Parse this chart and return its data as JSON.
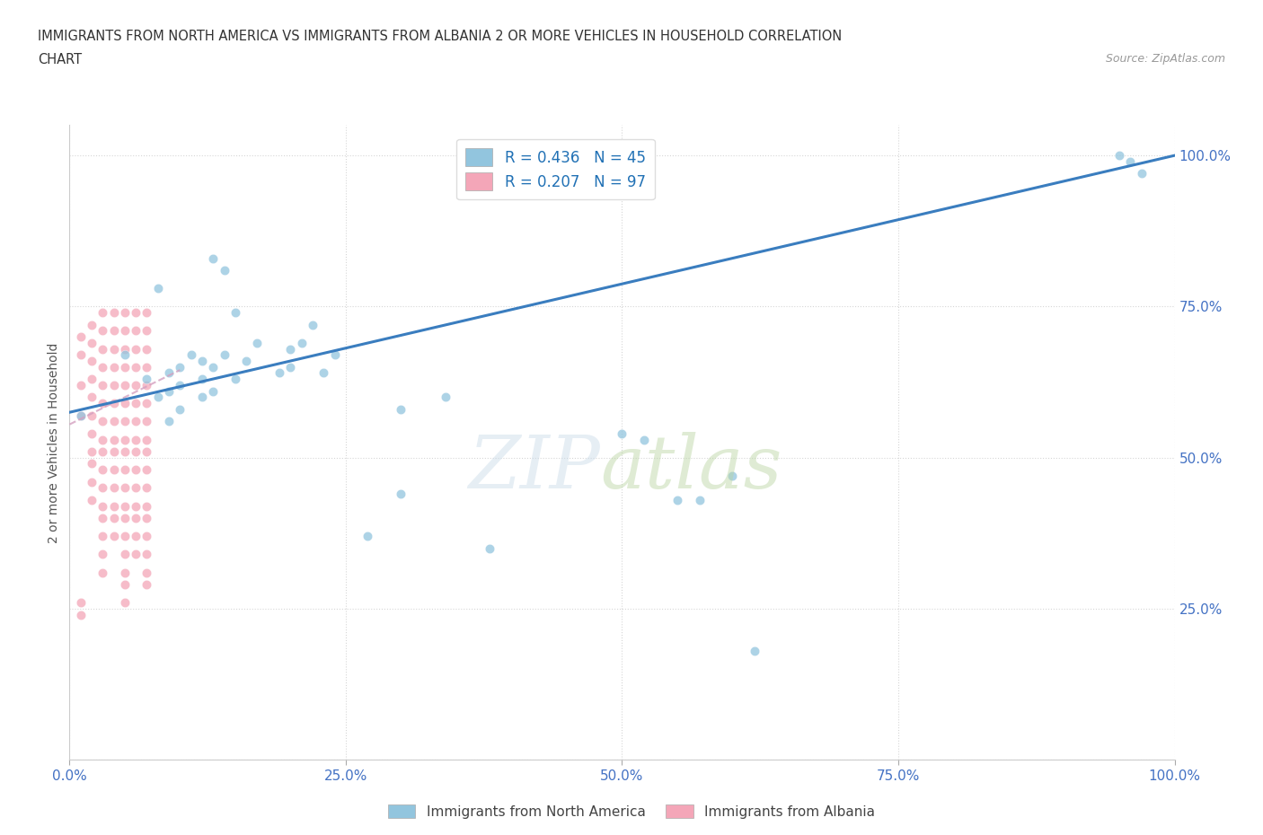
{
  "title_line1": "IMMIGRANTS FROM NORTH AMERICA VS IMMIGRANTS FROM ALBANIA 2 OR MORE VEHICLES IN HOUSEHOLD CORRELATION",
  "title_line2": "CHART",
  "source": "Source: ZipAtlas.com",
  "ylabel": "2 or more Vehicles in Household",
  "xticklabels": [
    "0.0%",
    "25.0%",
    "50.0%",
    "75.0%",
    "100.0%"
  ],
  "xticks": [
    0.0,
    0.25,
    0.5,
    0.75,
    1.0
  ],
  "yticklabels_right": [
    "25.0%",
    "50.0%",
    "75.0%",
    "100.0%"
  ],
  "yticks_right": [
    0.25,
    0.5,
    0.75,
    1.0
  ],
  "xlim": [
    0.0,
    1.0
  ],
  "ylim": [
    0.0,
    1.05
  ],
  "legend_blue_label": "R = 0.436   N = 45",
  "legend_pink_label": "R = 0.207   N = 97",
  "blue_color": "#92c5de",
  "pink_color": "#f4a6b8",
  "trendline_blue_color": "#3a7dbf",
  "pink_trendline_color": "#d4a0c0",
  "blue_scatter_x": [
    0.01,
    0.13,
    0.05,
    0.07,
    0.08,
    0.08,
    0.09,
    0.09,
    0.09,
    0.1,
    0.1,
    0.1,
    0.11,
    0.12,
    0.12,
    0.12,
    0.13,
    0.13,
    0.14,
    0.14,
    0.15,
    0.15,
    0.16,
    0.17,
    0.19,
    0.2,
    0.2,
    0.21,
    0.22,
    0.23,
    0.24,
    0.27,
    0.3,
    0.3,
    0.34,
    0.38,
    0.5,
    0.52,
    0.55,
    0.57,
    0.6,
    0.62,
    0.95,
    0.96,
    0.97
  ],
  "blue_scatter_y": [
    0.57,
    0.83,
    0.67,
    0.63,
    0.6,
    0.78,
    0.61,
    0.64,
    0.56,
    0.65,
    0.62,
    0.58,
    0.67,
    0.66,
    0.63,
    0.6,
    0.65,
    0.61,
    0.67,
    0.81,
    0.63,
    0.74,
    0.66,
    0.69,
    0.64,
    0.65,
    0.68,
    0.69,
    0.72,
    0.64,
    0.67,
    0.37,
    0.58,
    0.44,
    0.6,
    0.35,
    0.54,
    0.53,
    0.43,
    0.43,
    0.47,
    0.18,
    1.0,
    0.99,
    0.97
  ],
  "pink_scatter_x": [
    0.01,
    0.01,
    0.01,
    0.01,
    0.02,
    0.02,
    0.02,
    0.02,
    0.02,
    0.02,
    0.02,
    0.02,
    0.02,
    0.02,
    0.02,
    0.03,
    0.03,
    0.03,
    0.03,
    0.03,
    0.03,
    0.03,
    0.03,
    0.03,
    0.03,
    0.03,
    0.03,
    0.03,
    0.03,
    0.03,
    0.03,
    0.04,
    0.04,
    0.04,
    0.04,
    0.04,
    0.04,
    0.04,
    0.04,
    0.04,
    0.04,
    0.04,
    0.04,
    0.04,
    0.04,
    0.05,
    0.05,
    0.05,
    0.05,
    0.05,
    0.05,
    0.05,
    0.05,
    0.05,
    0.05,
    0.05,
    0.05,
    0.05,
    0.05,
    0.05,
    0.05,
    0.05,
    0.05,
    0.06,
    0.06,
    0.06,
    0.06,
    0.06,
    0.06,
    0.06,
    0.06,
    0.06,
    0.06,
    0.06,
    0.06,
    0.06,
    0.06,
    0.06,
    0.07,
    0.07,
    0.07,
    0.07,
    0.07,
    0.07,
    0.07,
    0.07,
    0.07,
    0.07,
    0.07,
    0.07,
    0.07,
    0.07,
    0.07,
    0.07,
    0.07,
    0.01,
    0.01
  ],
  "pink_scatter_y": [
    0.7,
    0.67,
    0.62,
    0.57,
    0.72,
    0.69,
    0.66,
    0.63,
    0.6,
    0.57,
    0.54,
    0.51,
    0.49,
    0.46,
    0.43,
    0.74,
    0.71,
    0.68,
    0.65,
    0.62,
    0.59,
    0.56,
    0.53,
    0.51,
    0.48,
    0.45,
    0.42,
    0.4,
    0.37,
    0.34,
    0.31,
    0.74,
    0.71,
    0.68,
    0.65,
    0.62,
    0.59,
    0.56,
    0.53,
    0.51,
    0.48,
    0.45,
    0.42,
    0.4,
    0.37,
    0.74,
    0.71,
    0.68,
    0.65,
    0.62,
    0.59,
    0.56,
    0.53,
    0.51,
    0.48,
    0.45,
    0.42,
    0.4,
    0.37,
    0.34,
    0.31,
    0.29,
    0.26,
    0.74,
    0.71,
    0.68,
    0.65,
    0.62,
    0.59,
    0.56,
    0.53,
    0.51,
    0.48,
    0.45,
    0.42,
    0.4,
    0.37,
    0.34,
    0.74,
    0.71,
    0.68,
    0.65,
    0.62,
    0.59,
    0.56,
    0.53,
    0.51,
    0.48,
    0.45,
    0.42,
    0.4,
    0.37,
    0.34,
    0.31,
    0.29,
    0.26,
    0.24
  ],
  "blue_trendline_x": [
    0.0,
    1.0
  ],
  "blue_trendline_y": [
    0.575,
    1.0
  ],
  "pink_trendline_x": [
    0.0,
    0.1
  ],
  "pink_trendline_y": [
    0.555,
    0.645
  ]
}
